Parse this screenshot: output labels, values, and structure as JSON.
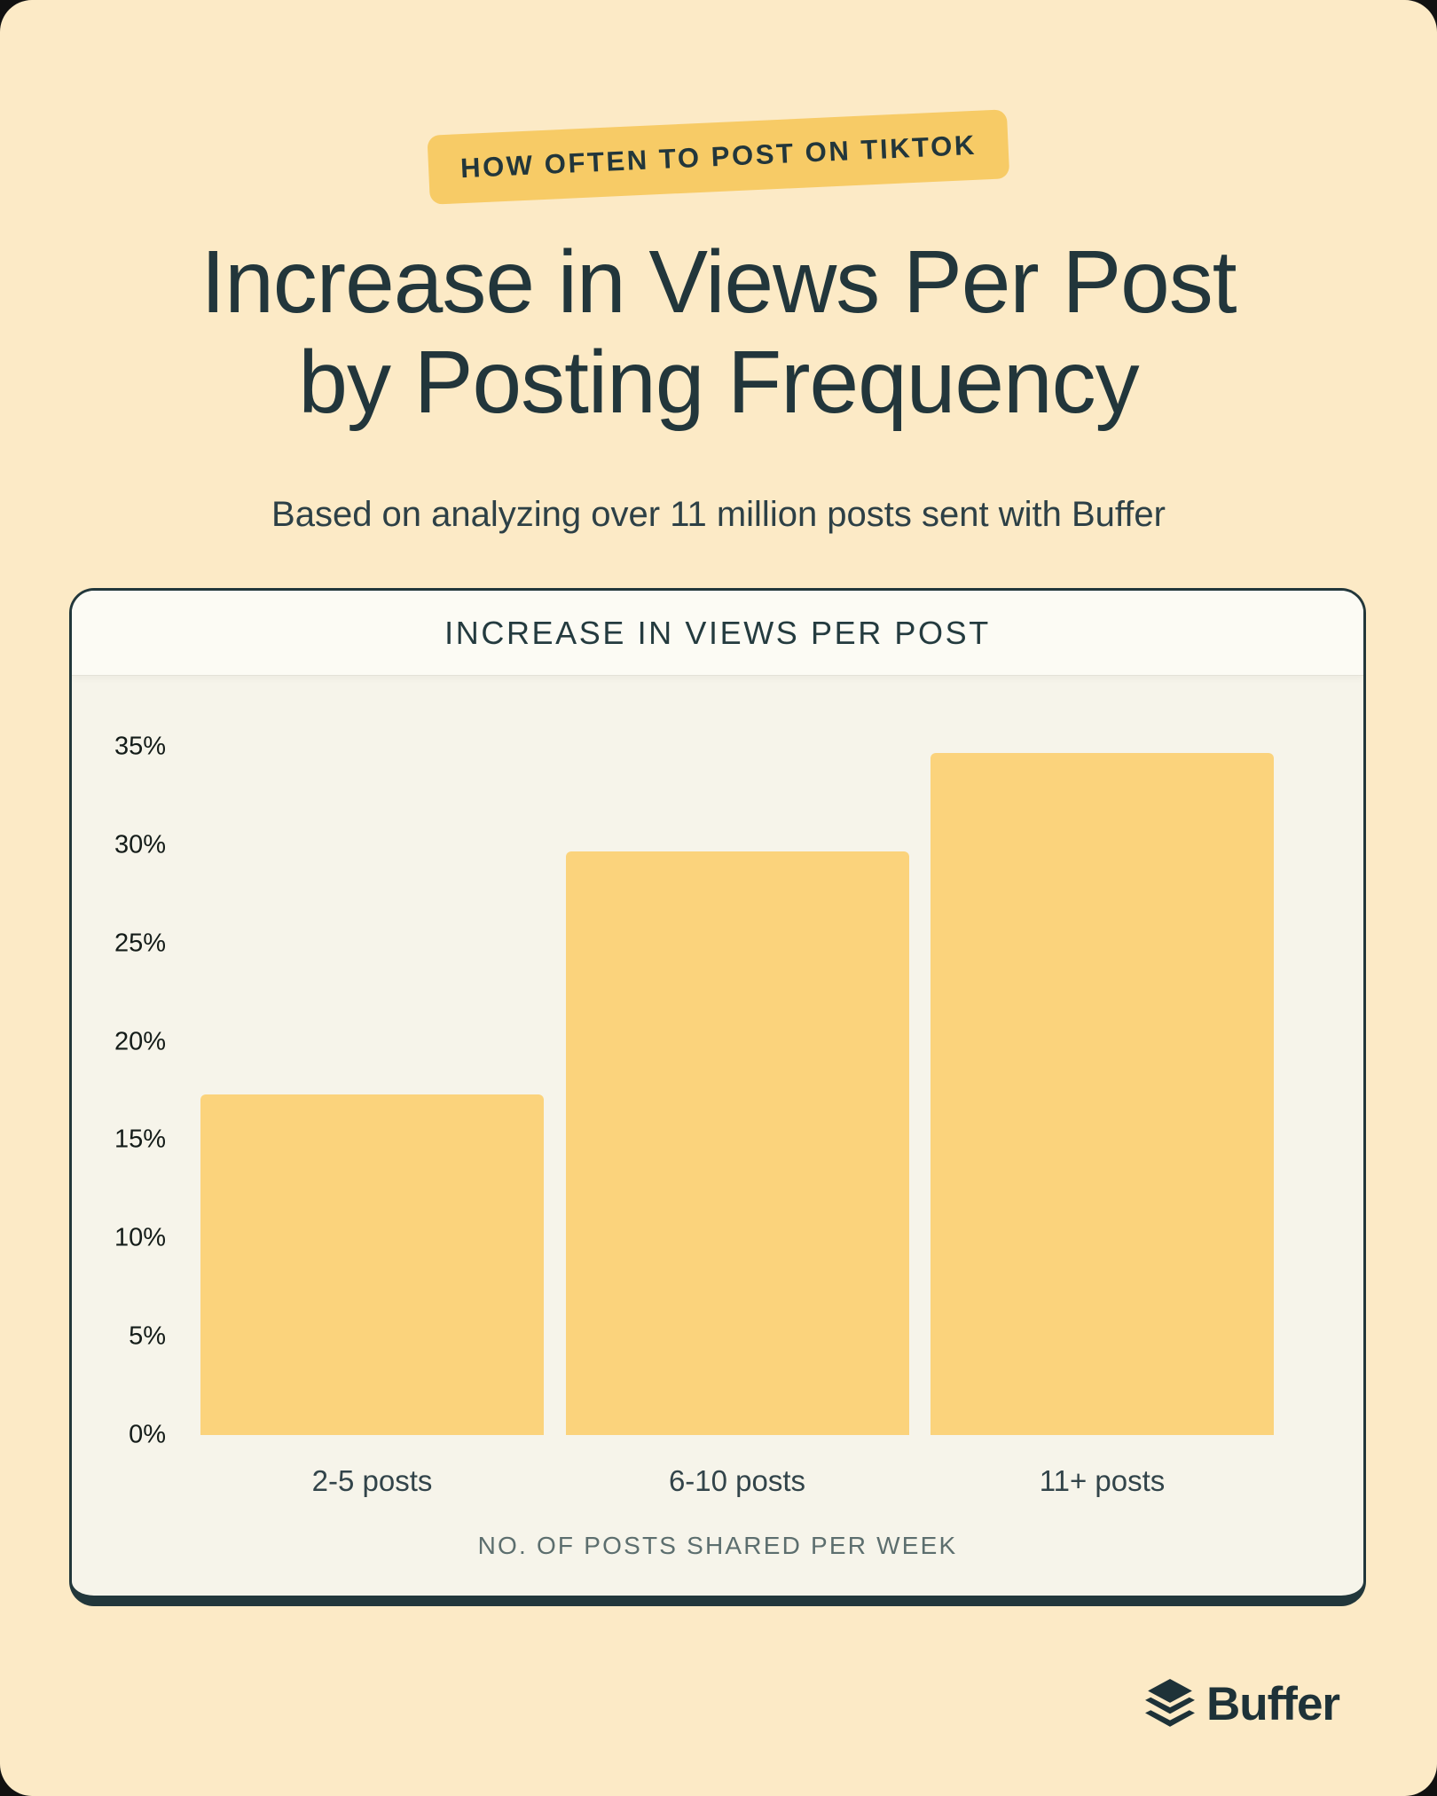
{
  "page": {
    "badge_label": "HOW OFTEN TO POST ON TIKTOK",
    "title_line1": "Increase in Views Per Post",
    "title_line2": "by Posting Frequency",
    "subtitle": "Based on analyzing over 11 million posts sent with Buffer",
    "brand_name": "Buffer"
  },
  "card": {
    "header_title": "INCREASE IN VIEWS PER POST"
  },
  "chart_data": {
    "type": "bar",
    "title": "INCREASE IN VIEWS PER POST",
    "categories": [
      "2-5 posts",
      "6-10 posts",
      "11+ posts"
    ],
    "values": [
      17.3,
      29.7,
      34.7
    ],
    "xlabel": "NO. OF POSTS SHARED PER WEEK",
    "ylabel": "",
    "ylim": [
      0,
      35
    ],
    "yticks": [
      0,
      5,
      10,
      15,
      20,
      25,
      30,
      35
    ],
    "ytick_format": "{v}%",
    "grid": false,
    "legend": false,
    "bar_color": "#FBD37C"
  },
  "colors": {
    "page_background": "#FCEAC6",
    "badge_background": "#F7CB66",
    "bar_fill": "#FBD37C",
    "dark_green_text": "#22363B",
    "card_border": "#22373B",
    "card_header_background": "#FCFBF4",
    "card_body_background": "#F6F4EA",
    "ytick_text": "#141C19",
    "xtick_text": "#32444A",
    "axis_caption_text": "#5C6E6E"
  }
}
